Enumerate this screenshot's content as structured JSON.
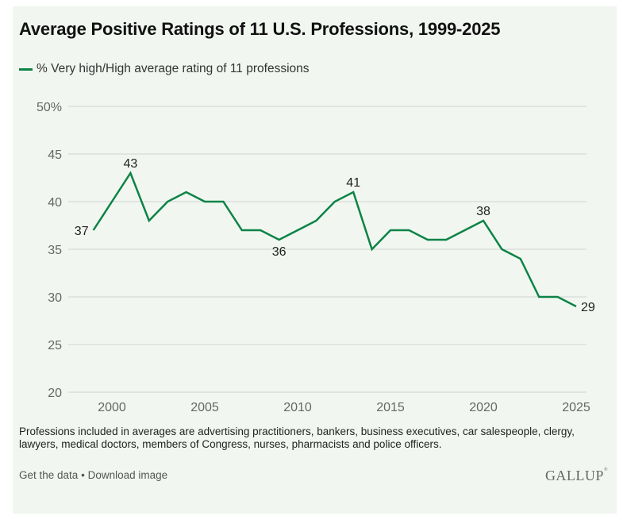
{
  "colors": {
    "line": "#0d8346",
    "background": "#f1f7f0",
    "grid": "#dcdfdc"
  },
  "chart_data": {
    "type": "line",
    "title": "Average Positive Ratings of 11 U.S. Professions, 1999-2025",
    "xlabel": "",
    "ylabel": "",
    "legend": {
      "placement": "top-left",
      "entries": [
        "% Very high/High average rating of 11 professions"
      ]
    },
    "grid": true,
    "xlim": [
      1999,
      2025
    ],
    "ylim": [
      20,
      50
    ],
    "x_ticks": [
      2000,
      2005,
      2010,
      2015,
      2020,
      2025
    ],
    "y_ticks": [
      20,
      25,
      30,
      35,
      40,
      45,
      50
    ],
    "y_tick_labels": [
      "20",
      "25",
      "30",
      "35",
      "40",
      "45",
      "50%"
    ],
    "x": [
      1999,
      2000,
      2001,
      2002,
      2003,
      2004,
      2005,
      2006,
      2007,
      2008,
      2009,
      2010,
      2011,
      2012,
      2013,
      2014,
      2015,
      2016,
      2017,
      2018,
      2019,
      2020,
      2021,
      2022,
      2023,
      2024,
      2025
    ],
    "series": [
      {
        "name": "% Very high/High average rating of 11 professions",
        "values": [
          37,
          40,
          43,
          38,
          40,
          41,
          40,
          40,
          37,
          37,
          36,
          37,
          38,
          40,
          41,
          35,
          37,
          37,
          36,
          36,
          37,
          38,
          35,
          34,
          30,
          30,
          29
        ]
      }
    ],
    "annotations": [
      {
        "x": 1999,
        "value": 37,
        "text": "37",
        "position": "left"
      },
      {
        "x": 2001,
        "value": 43,
        "text": "43",
        "position": "above"
      },
      {
        "x": 2009,
        "value": 36,
        "text": "36",
        "position": "below"
      },
      {
        "x": 2013,
        "value": 41,
        "text": "41",
        "position": "above"
      },
      {
        "x": 2020,
        "value": 38,
        "text": "38",
        "position": "above"
      },
      {
        "x": 2025,
        "value": 29,
        "text": "29",
        "position": "right"
      }
    ]
  },
  "note": "Professions included in averages are advertising practitioners, bankers, business executives, car salespeople, clergy, lawyers, medical doctors, members of Congress, nurses, pharmacists and police officers.",
  "footer": {
    "get_data": "Get the data",
    "separator": "•",
    "download": "Download image",
    "logo": "GALLUP",
    "logo_mark": "®"
  }
}
